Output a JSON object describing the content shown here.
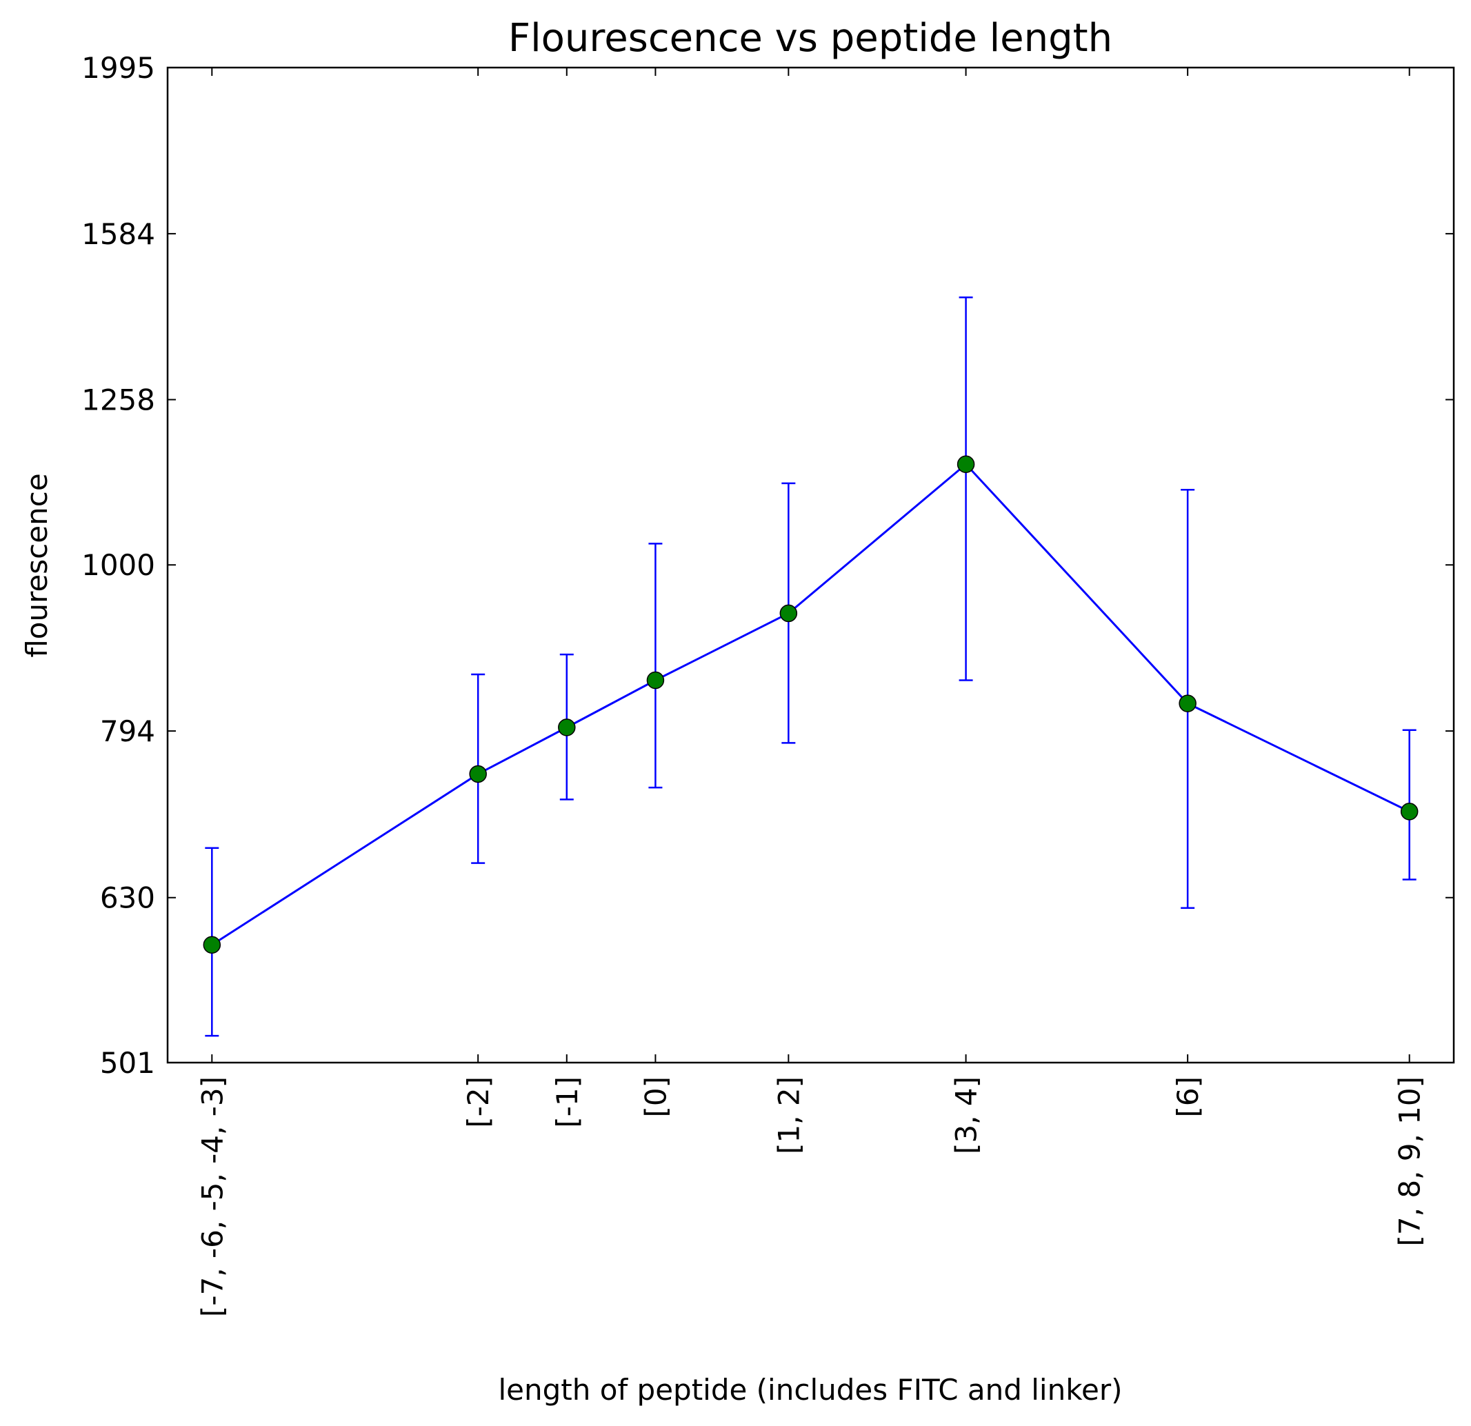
{
  "chart_data": {
    "type": "line",
    "title": "Flourescence vs peptide length",
    "xlabel": "length of peptide (includes FITC and linker)",
    "ylabel": "flourescence",
    "y_scale": "log",
    "ylim": [
      501,
      1995
    ],
    "yticks": [
      501,
      630,
      794,
      1000,
      1258,
      1584,
      1995
    ],
    "x_values": [
      -5,
      -2,
      -1,
      0,
      1.5,
      3.5,
      6,
      8.5
    ],
    "x_range": [
      -5.5,
      9
    ],
    "categories": [
      "[-7, -6, -5, -4, -3]",
      "[-2]",
      "[-1]",
      "[0]",
      "[1, 2]",
      "[3, 4]",
      "[6]",
      "[7, 8, 9, 10]"
    ],
    "series": [
      {
        "values": [
          590,
          748,
          798,
          852,
          935,
          1150,
          825,
          710
        ],
        "err_low": [
          520,
          661,
          722,
          734,
          781,
          852,
          621,
          646
        ],
        "err_high": [
          675,
          859,
          883,
          1030,
          1120,
          1450,
          1110,
          795
        ]
      }
    ],
    "grid": false,
    "legend": "none",
    "colors": {
      "line": "#0000ff",
      "marker": "#008000",
      "axes": "#000000"
    }
  }
}
